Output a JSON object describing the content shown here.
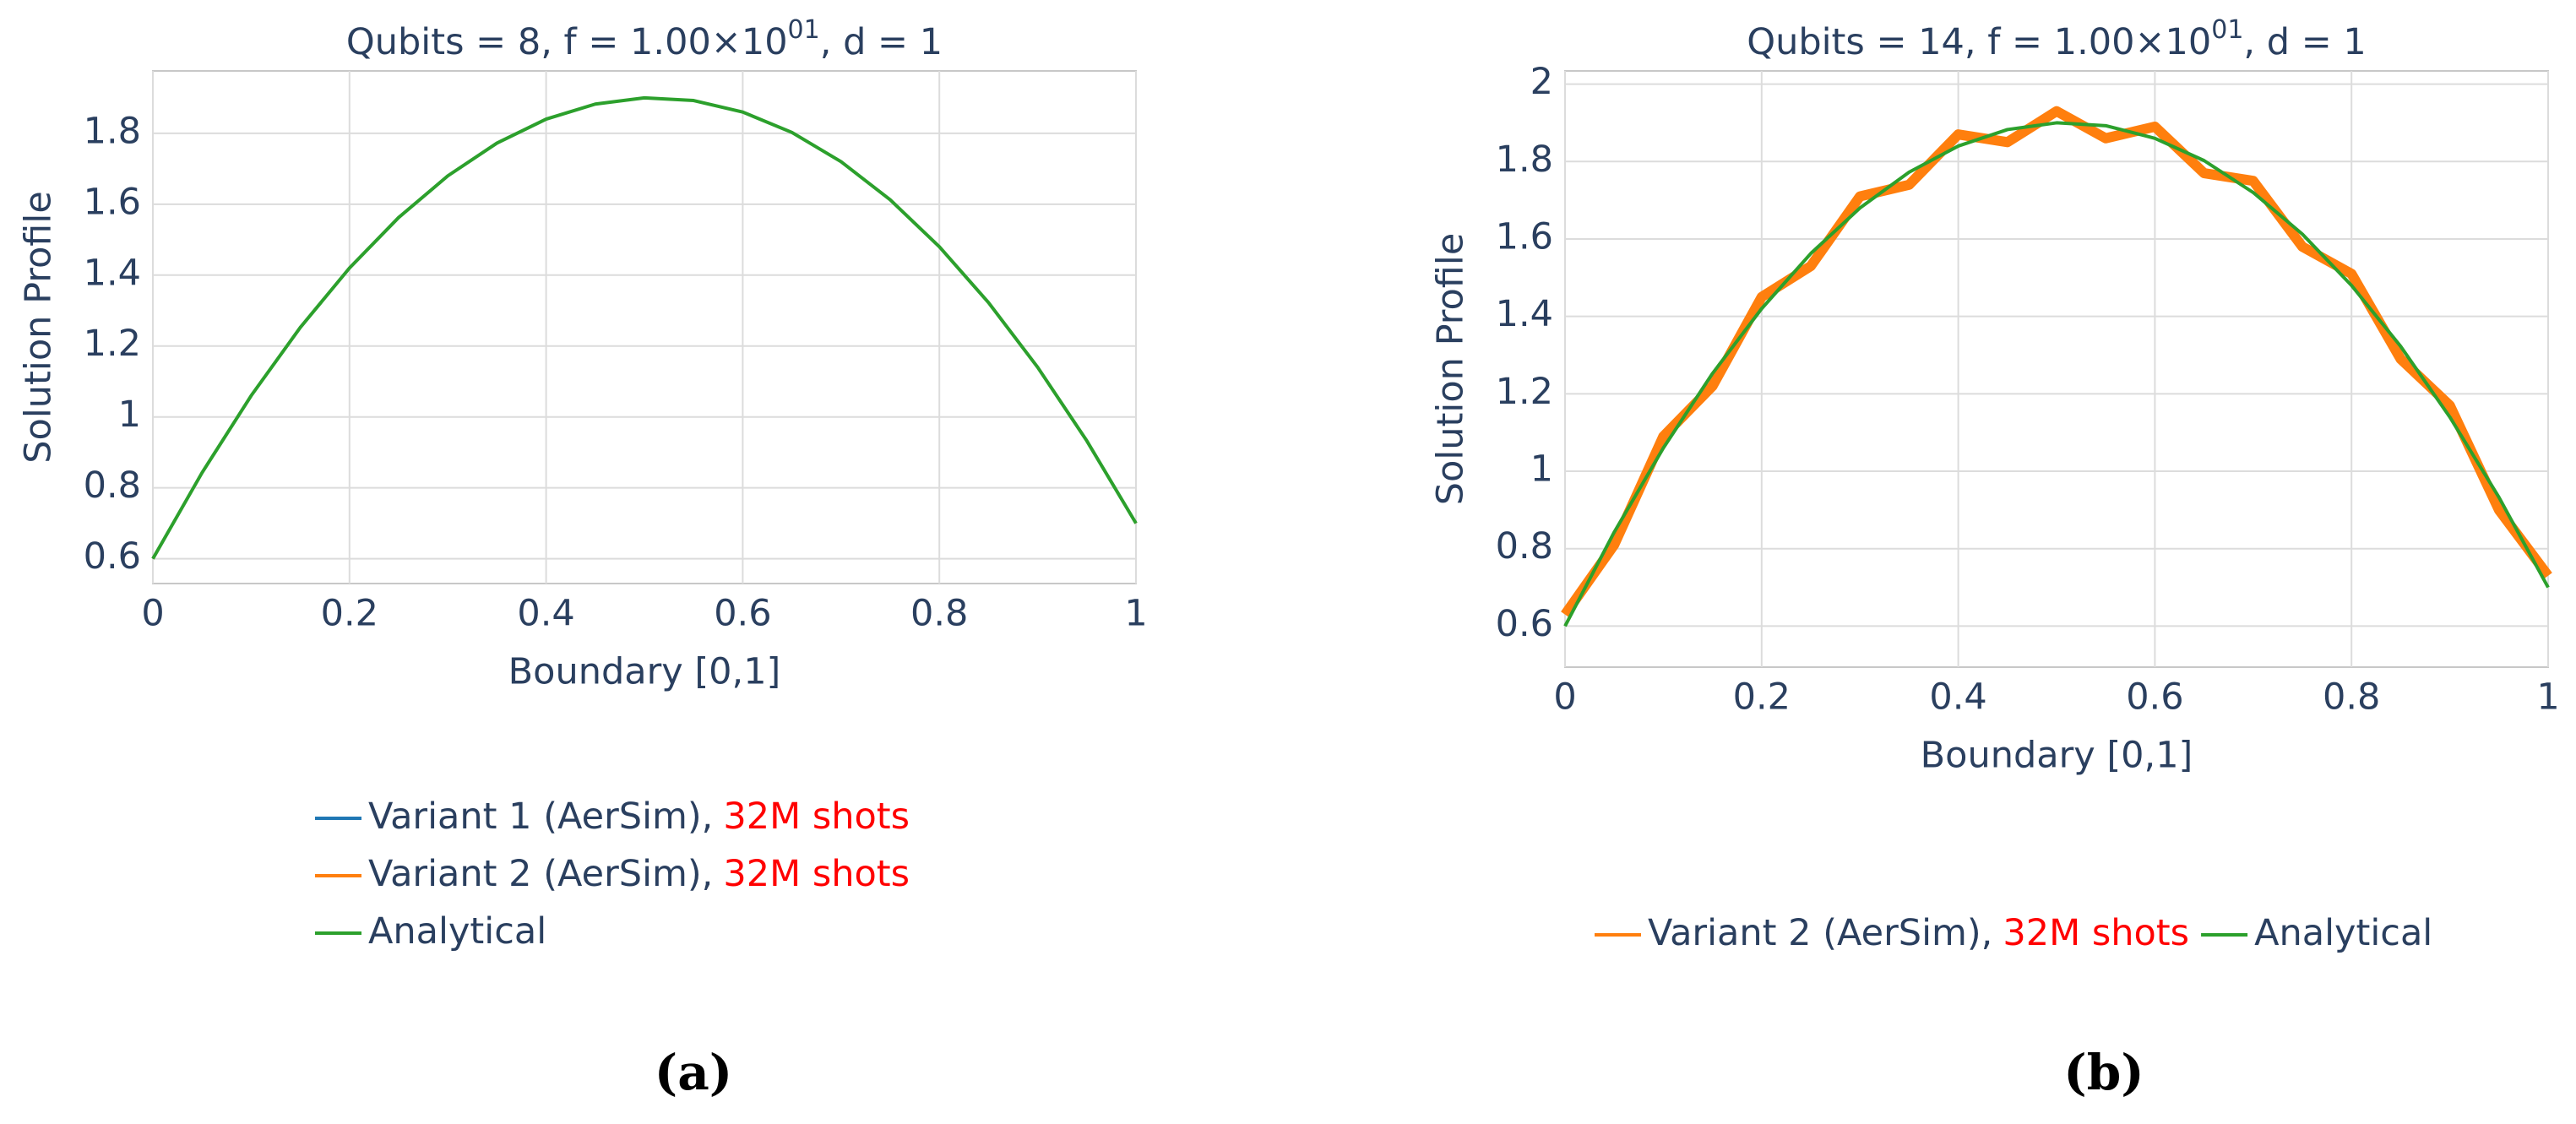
{
  "chart_data": [
    {
      "type": "line",
      "title_prefix": "Qubits = 8, f = 1.00×10",
      "title_exponent": "01",
      "title_suffix": ", d = 1",
      "x_label": "Boundary [0,1]",
      "y_label": "Solution Profile",
      "caption": "(a)",
      "x": [
        0,
        0.05,
        0.1,
        0.15,
        0.2,
        0.25,
        0.3,
        0.35,
        0.4,
        0.45,
        0.5,
        0.55,
        0.6,
        0.65,
        0.7,
        0.75,
        0.8,
        0.85,
        0.9,
        0.95,
        1
      ],
      "series": [
        {
          "name": "Variant 1 (AerSim),",
          "note": "32M shots",
          "note_color": "#ff0000",
          "color": "#1f77b4",
          "width": 3,
          "values": [
            0.6,
            0.8425,
            1.06,
            1.2525,
            1.42,
            1.5625,
            1.68,
            1.7725,
            1.84,
            1.8825,
            1.9,
            1.8925,
            1.86,
            1.8025,
            1.72,
            1.6125,
            1.48,
            1.3225,
            1.14,
            0.9325,
            0.7
          ]
        },
        {
          "name": "Variant 2 (AerSim),",
          "note": "32M shots",
          "note_color": "#ff0000",
          "color": "#ff7f0e",
          "width": 3,
          "values": [
            0.6,
            0.8425,
            1.06,
            1.2525,
            1.42,
            1.5625,
            1.68,
            1.7725,
            1.84,
            1.8825,
            1.9,
            1.8925,
            1.86,
            1.8025,
            1.72,
            1.6125,
            1.48,
            1.3225,
            1.14,
            0.9325,
            0.7
          ]
        },
        {
          "name": "Analytical",
          "color": "#2ca02c",
          "width": 4,
          "values": [
            0.6,
            0.8425,
            1.06,
            1.2525,
            1.42,
            1.5625,
            1.68,
            1.7725,
            1.84,
            1.8825,
            1.9,
            1.8925,
            1.86,
            1.8025,
            1.72,
            1.6125,
            1.48,
            1.3225,
            1.14,
            0.9325,
            0.7
          ]
        }
      ],
      "xlim": [
        0,
        1
      ],
      "xticks": [
        0,
        0.2,
        0.4,
        0.6,
        0.8,
        1
      ],
      "ylim": [
        0.53,
        1.976
      ],
      "yticks": [
        0.6,
        0.8,
        1,
        1.2,
        1.4,
        1.6,
        1.8
      ],
      "grid": true,
      "legend_orientation": "vertical"
    },
    {
      "type": "line",
      "title_prefix": "Qubits = 14, f = 1.00×10",
      "title_exponent": "01",
      "title_suffix": ", d = 1",
      "x_label": "Boundary [0,1]",
      "y_label": "Solution Profile",
      "caption": "(b)",
      "x": [
        0,
        0.05,
        0.1,
        0.15,
        0.2,
        0.25,
        0.3,
        0.35,
        0.4,
        0.45,
        0.5,
        0.55,
        0.6,
        0.65,
        0.7,
        0.75,
        0.8,
        0.85,
        0.9,
        0.95,
        1
      ],
      "series": [
        {
          "name": "Variant 2 (AerSim),",
          "note": "32M shots",
          "note_color": "#ff0000",
          "color": "#ff7f0e",
          "width": 12,
          "values": [
            0.63,
            0.81,
            1.09,
            1.22,
            1.45,
            1.53,
            1.71,
            1.74,
            1.87,
            1.85,
            1.93,
            1.86,
            1.89,
            1.77,
            1.75,
            1.58,
            1.51,
            1.29,
            1.17,
            0.9,
            0.73
          ]
        },
        {
          "name": "Analytical",
          "color": "#2ca02c",
          "width": 4,
          "values": [
            0.6,
            0.8425,
            1.06,
            1.2525,
            1.42,
            1.5625,
            1.68,
            1.7725,
            1.84,
            1.8825,
            1.9,
            1.8925,
            1.86,
            1.8025,
            1.72,
            1.6125,
            1.48,
            1.3225,
            1.14,
            0.9325,
            0.7
          ]
        }
      ],
      "xlim": [
        0,
        1
      ],
      "xticks": [
        0,
        0.2,
        0.4,
        0.6,
        0.8,
        1
      ],
      "ylim": [
        0.494,
        2.034
      ],
      "yticks": [
        0.6,
        0.8,
        1,
        1.2,
        1.4,
        1.6,
        1.8,
        2
      ],
      "grid": true,
      "legend_orientation": "horizontal"
    }
  ]
}
